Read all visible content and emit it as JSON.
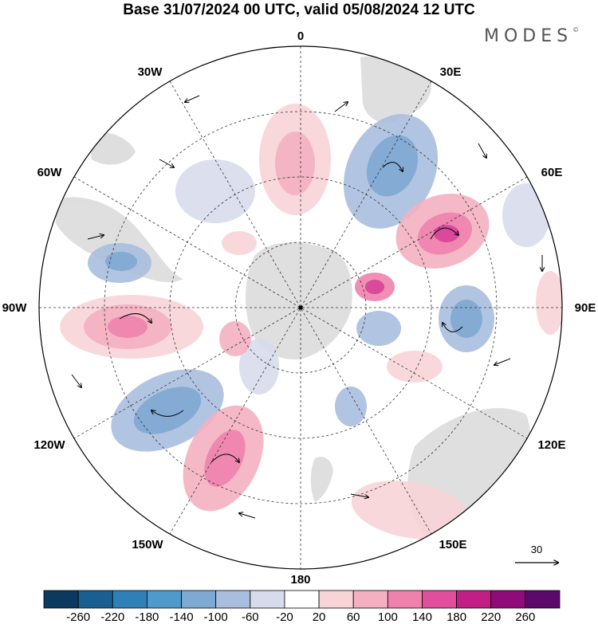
{
  "title": "Base 31/07/2024 00 UTC, valid 05/08/2024 12 UTC",
  "brand": "MODES",
  "brand_mark": "©",
  "longitude_labels": [
    "0",
    "30E",
    "60E",
    "90E",
    "120E",
    "150E",
    "180",
    "150W",
    "120W",
    "90W",
    "60W",
    "30W"
  ],
  "reference_vector": {
    "label": "30"
  },
  "colorbar": {
    "ticks": [
      "-260",
      "-220",
      "-180",
      "-140",
      "-100",
      "-60",
      "-20",
      "20",
      "60",
      "100",
      "140",
      "180",
      "220",
      "260"
    ],
    "colors": [
      "#0c3a5e",
      "#1a5f8f",
      "#2f80b6",
      "#4f9acb",
      "#7ea9d3",
      "#a9bede",
      "#d7dcec",
      "#ffffff",
      "#f8d4d7",
      "#f4b0c0",
      "#ee82ad",
      "#e04e9c",
      "#c31d86",
      "#8f0b7a",
      "#5b0a6b"
    ]
  },
  "map_colors": {
    "land": "#d9d9d9",
    "positive": "#ef8fb4",
    "positive_strong": "#d8469a",
    "negative": "#8fb3d8",
    "negative_strong": "#5b8fc4"
  }
}
